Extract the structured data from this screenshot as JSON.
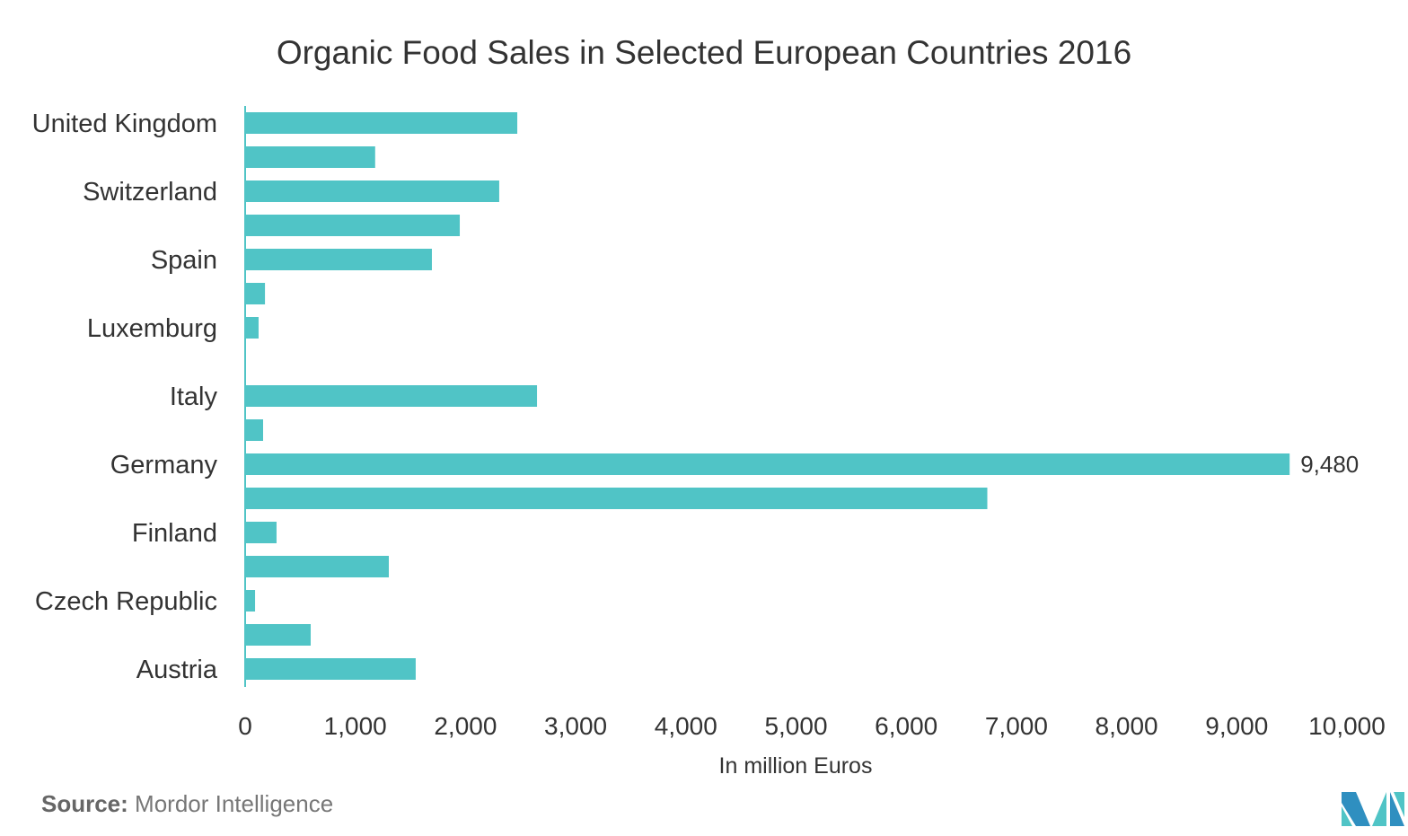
{
  "chart_data": {
    "type": "bar",
    "orientation": "horizontal",
    "title": "Organic Food Sales in Selected European Countries 2016",
    "xlabel": "In million Euros",
    "ylabel": "",
    "xlim": [
      0,
      10000
    ],
    "xticks": [
      "0",
      "1,000",
      "2,000",
      "3,000",
      "4,000",
      "5,000",
      "6,000",
      "7,000",
      "8,000",
      "9,000",
      "10,000"
    ],
    "categories": [
      "United Kingdom",
      "",
      "Switzerland",
      "",
      "Spain",
      "",
      "Luxemburg",
      "",
      "Italy",
      "",
      "Germany",
      "",
      "Finland",
      "",
      "Czech Republic",
      "",
      "Austria"
    ],
    "values": [
      2470,
      1180,
      2306,
      1948,
      1695,
      180,
      122,
      0,
      2649,
      163,
      9480,
      6736,
      285,
      1304,
      90,
      595,
      1548
    ],
    "data_labels": {
      "10": "9,480"
    },
    "bar_color": "#50c4c6",
    "grid": false
  },
  "source": {
    "label": "Source:",
    "text": "Mordor Intelligence"
  }
}
